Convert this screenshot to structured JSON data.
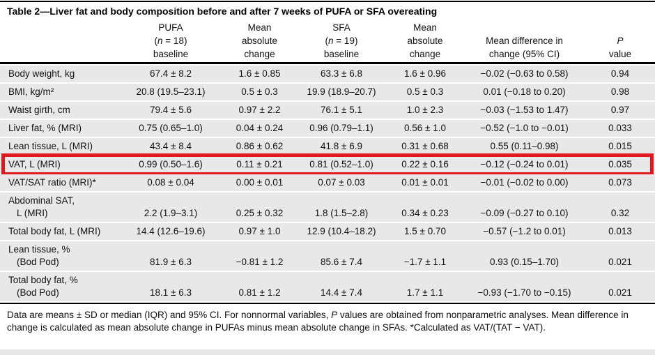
{
  "title": "Table 2—Liver fat and body composition before and after 7 weeks of PUFA or SFA overeating",
  "colors": {
    "highlight_red": "#e0191f",
    "row_gray": "#e8e8e8",
    "rule_black": "#000000"
  },
  "header": {
    "cells": [
      {
        "lines": []
      },
      {
        "lines": [
          [
            {
              "t": "PUFA"
            }
          ],
          [
            {
              "t": "("
            },
            {
              "t": "n",
              "i": 1
            },
            {
              "t": " = 18)"
            }
          ],
          [
            {
              "t": "baseline"
            }
          ]
        ]
      },
      {
        "lines": [
          [
            {
              "t": "Mean"
            }
          ],
          [
            {
              "t": "absolute"
            }
          ],
          [
            {
              "t": "change"
            }
          ]
        ]
      },
      {
        "lines": [
          [
            {
              "t": "SFA"
            }
          ],
          [
            {
              "t": "("
            },
            {
              "t": "n",
              "i": 1
            },
            {
              "t": " = 19)"
            }
          ],
          [
            {
              "t": "baseline"
            }
          ]
        ]
      },
      {
        "lines": [
          [
            {
              "t": "Mean"
            }
          ],
          [
            {
              "t": "absolute"
            }
          ],
          [
            {
              "t": "change"
            }
          ]
        ]
      },
      {
        "lines": [
          [
            {
              "t": "Mean difference in"
            }
          ],
          [
            {
              "t": "change (95% CI)"
            }
          ]
        ]
      },
      {
        "lines": [
          [
            {
              "t": "P",
              "i": 1
            }
          ],
          [
            {
              "t": "value"
            }
          ]
        ]
      }
    ]
  },
  "rows": [
    {
      "label": [
        "Body weight, kg"
      ],
      "values": [
        "67.4 ± 8.2",
        "1.6 ± 0.85",
        "63.3 ± 6.8",
        "1.6 ± 0.96",
        "−0.02 (−0.63 to 0.58)",
        "0.94"
      ],
      "highlight": false
    },
    {
      "label": [
        "BMI, kg/m²"
      ],
      "values": [
        "20.8 (19.5–23.1)",
        "0.5 ± 0.3",
        "19.9 (18.9–20.7)",
        "0.5 ± 0.3",
        "0.01 (−0.18 to 0.20)",
        "0.98"
      ],
      "highlight": false
    },
    {
      "label": [
        "Waist girth, cm"
      ],
      "values": [
        "79.4 ± 5.6",
        "0.97 ± 2.2",
        "76.1 ± 5.1",
        "1.0 ± 2.3",
        "−0.03 (−1.53 to 1.47)",
        "0.97"
      ],
      "highlight": false
    },
    {
      "label": [
        "Liver fat, % (MRI)"
      ],
      "values": [
        "0.75 (0.65–1.0)",
        "0.04 ± 0.24",
        "0.96 (0.79–1.1)",
        "0.56 ± 1.0",
        "−0.52 (−1.0 to −0.01)",
        "0.033"
      ],
      "highlight": false
    },
    {
      "label": [
        "Lean tissue, L (MRI)"
      ],
      "values": [
        "43.4 ± 8.4",
        "0.86 ± 0.62",
        "41.8 ± 6.9",
        "0.31 ± 0.68",
        "0.55 (0.11–0.98)",
        "0.015"
      ],
      "highlight": false
    },
    {
      "label": [
        "VAT, L (MRI)"
      ],
      "values": [
        "0.99 (0.50–1.6)",
        "0.11 ± 0.21",
        "0.81 (0.52–1.0)",
        "0.22 ± 0.16",
        "−0.12 (−0.24 to 0.01)",
        "0.035"
      ],
      "highlight": true
    },
    {
      "label": [
        "VAT/SAT ratio (MRI)*"
      ],
      "values": [
        "0.08 ± 0.04",
        "0.00 ± 0.01",
        "0.07 ± 0.03",
        "0.01 ± 0.01",
        "−0.01 (−0.02 to 0.00)",
        "0.073"
      ],
      "highlight": false
    },
    {
      "label": [
        "Abdominal SAT,",
        "L (MRI)"
      ],
      "values": [
        "2.2 (1.9–3.1)",
        "0.25 ± 0.32",
        "1.8 (1.5–2.8)",
        "0.34 ± 0.23",
        "−0.09 (−0.27 to 0.10)",
        "0.32"
      ],
      "highlight": false
    },
    {
      "label": [
        "Total body fat, L (MRI)"
      ],
      "values": [
        "14.4 (12.6–19.6)",
        "0.97 ± 1.0",
        "12.9 (10.4–18.2)",
        "1.5 ± 0.70",
        "−0.57 (−1.2 to 0.01)",
        "0.013"
      ],
      "highlight": false
    },
    {
      "label": [
        "Lean tissue, %",
        "(Bod Pod)"
      ],
      "values": [
        "81.9 ± 6.3",
        "−0.81 ± 1.2",
        "85.6 ± 7.4",
        "−1.7 ± 1.1",
        "0.93 (0.15–1.70)",
        "0.021"
      ],
      "highlight": false
    },
    {
      "label": [
        "Total body fat, %",
        "(Bod Pod)"
      ],
      "values": [
        "18.1 ± 6.3",
        "0.81 ± 1.2",
        "14.4 ± 7.4",
        "1.7 ± 1.1",
        "−0.93 (−1.70 to −0.15)",
        "0.021"
      ],
      "highlight": false
    }
  ],
  "footnote": [
    {
      "t": "Data are means ± SD or median (IQR) and 95% CI. For nonnormal variables, "
    },
    {
      "t": "P",
      "i": 1
    },
    {
      "t": " values are obtained from nonparametric analyses. Mean difference in change is calculated as mean absolute change in PUFAs minus mean absolute change in SFAs. *Calculated as VAT/(TAT − VAT)."
    }
  ]
}
